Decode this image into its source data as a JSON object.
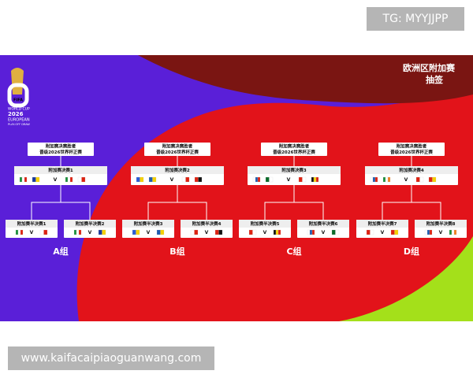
{
  "watermark": "TG: MYYJJPP",
  "header": {
    "title_line1": "欧洲区附加赛",
    "title_line2": "抽签"
  },
  "logo": {
    "brand": "FIFA",
    "line1": "WORLD CUP",
    "line2": "2026",
    "line3": "EUROPEAN",
    "line4": "PLAY-OFF DRAW"
  },
  "groups": [
    {
      "winner": [
        "附加赛决赛胜者",
        "晋级2026世界杯正赛"
      ],
      "final": {
        "label": "附加赛决赛1",
        "vs": "V"
      },
      "semis": [
        {
          "label": "附加赛半决赛1",
          "vs": "V"
        },
        {
          "label": "附加赛半决赛2",
          "vs": "V"
        }
      ],
      "name": "A组"
    },
    {
      "winner": [
        "附加赛决赛胜者",
        "晋级2026世界杯正赛"
      ],
      "final": {
        "label": "附加赛决赛2",
        "vs": "V"
      },
      "semis": [
        {
          "label": "附加赛半决赛3",
          "vs": "V"
        },
        {
          "label": "附加赛半决赛4",
          "vs": "V"
        }
      ],
      "name": "B组"
    },
    {
      "winner": [
        "附加赛决赛胜者",
        "晋级2026世界杯正赛"
      ],
      "final": {
        "label": "附加赛决赛3",
        "vs": "V"
      },
      "semis": [
        {
          "label": "附加赛半决赛5",
          "vs": "V"
        },
        {
          "label": "附加赛半决赛6",
          "vs": "V"
        }
      ],
      "name": "C组"
    },
    {
      "winner": [
        "附加赛决赛胜者",
        "晋级2026世界杯正赛"
      ],
      "final": {
        "label": "附加赛决赛4",
        "vs": "V"
      },
      "semis": [
        {
          "label": "附加赛半决赛7",
          "vs": "V"
        },
        {
          "label": "附加赛半决赛8",
          "vs": "V"
        }
      ],
      "name": "D组"
    }
  ],
  "footer_url": "www.kaifacaipiaoguanwang.com"
}
